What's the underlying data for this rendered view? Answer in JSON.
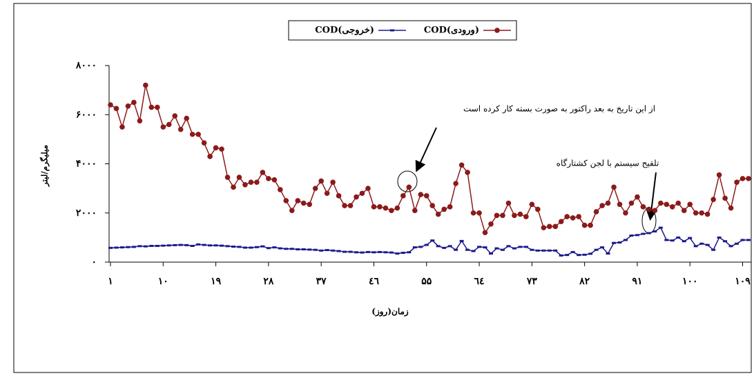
{
  "chart_data": {
    "type": "line",
    "x_label": "زمان(روز)",
    "y_label": "میلیگرم/لیتر",
    "legend": "top",
    "x": [
      1,
      2,
      3,
      4,
      5,
      6,
      7,
      8,
      9,
      10,
      11,
      12,
      13,
      14,
      15,
      16,
      17,
      18,
      19,
      20,
      21,
      22,
      23,
      24,
      25,
      26,
      27,
      28,
      29,
      30,
      31,
      32,
      33,
      34,
      35,
      36,
      37,
      38,
      39,
      40,
      41,
      42,
      43,
      44,
      45,
      46,
      47,
      48,
      49,
      50,
      51,
      52,
      53,
      54,
      55,
      56,
      57,
      58,
      59,
      60,
      61,
      62,
      63,
      64,
      65,
      66,
      67,
      68,
      69,
      70,
      71,
      72,
      73,
      74,
      75,
      76,
      77,
      78,
      79,
      80,
      81,
      82,
      83,
      84,
      85,
      86,
      87,
      88,
      89,
      90,
      91,
      92,
      93,
      94,
      95,
      96,
      97,
      98,
      99,
      100,
      101,
      102,
      103,
      104,
      105,
      106,
      107,
      108,
      109,
      110
    ],
    "xlim": [
      1,
      110
    ],
    "xticks": [
      {
        "value": 1,
        "label": "۱"
      },
      {
        "value": 10,
        "label": "۱۰"
      },
      {
        "value": 19,
        "label": "۱۹"
      },
      {
        "value": 28,
        "label": "۲۸"
      },
      {
        "value": 37,
        "label": "۳۷"
      },
      {
        "value": 46,
        "label": "٤٦"
      },
      {
        "value": 55,
        "label": "۵۵"
      },
      {
        "value": 64,
        "label": "٦٤"
      },
      {
        "value": 73,
        "label": "۷۳"
      },
      {
        "value": 82,
        "label": "۸۲"
      },
      {
        "value": 91,
        "label": "۹۱"
      },
      {
        "value": 100,
        "label": "۱۰۰"
      },
      {
        "value": 109,
        "label": "۱۰۹"
      }
    ],
    "ylim": [
      0,
      8000
    ],
    "yticks": [
      {
        "value": 0,
        "label": "۰"
      },
      {
        "value": 2000,
        "label": "۲۰۰۰"
      },
      {
        "value": 4000,
        "label": "۴۰۰۰"
      },
      {
        "value": 6000,
        "label": "۶۰۰۰"
      },
      {
        "value": 8000,
        "label": "۸۰۰۰"
      }
    ],
    "series": [
      {
        "name": "COD(ورودی)",
        "color": "#8b1a1a",
        "marker": "circle",
        "values": [
          6400,
          6250,
          5500,
          6350,
          6500,
          5750,
          7200,
          6300,
          6300,
          5500,
          5600,
          5950,
          5400,
          5850,
          5200,
          5200,
          4850,
          4300,
          4650,
          4600,
          3450,
          3050,
          3450,
          3150,
          3250,
          3250,
          3650,
          3400,
          3350,
          2950,
          2500,
          2100,
          2500,
          2400,
          2350,
          3000,
          3300,
          2800,
          3250,
          2700,
          2300,
          2300,
          2650,
          2800,
          3000,
          2250,
          2250,
          2200,
          2100,
          2200,
          2700,
          3050,
          2100,
          2750,
          2700,
          2300,
          1950,
          2150,
          2250,
          3200,
          3950,
          3650,
          2000,
          2000,
          1200,
          1550,
          1900,
          1900,
          2400,
          1900,
          1950,
          1850,
          2350,
          2150,
          1400,
          1450,
          1450,
          1650,
          1850,
          1800,
          1850,
          1500,
          1500,
          2050,
          2300,
          2400,
          3050,
          2350,
          2000,
          2400,
          2650,
          2250,
          2150,
          2100,
          2400,
          2350,
          2250,
          2400,
          2100,
          2350,
          2000,
          2000,
          1950,
          2550,
          3550,
          2600,
          2200,
          3250,
          3400,
          3400
        ]
      },
      {
        "name": "COD(خروجی)",
        "color": "#1a1a8b",
        "marker": "dash",
        "values": [
          580,
          590,
          600,
          610,
          620,
          650,
          640,
          660,
          660,
          670,
          680,
          690,
          700,
          690,
          660,
          720,
          700,
          680,
          680,
          670,
          650,
          630,
          620,
          590,
          590,
          610,
          640,
          570,
          600,
          560,
          540,
          540,
          520,
          520,
          510,
          500,
          470,
          490,
          470,
          450,
          420,
          420,
          400,
          390,
          410,
          400,
          410,
          400,
          390,
          350,
          380,
          400,
          600,
          620,
          700,
          880,
          650,
          580,
          650,
          500,
          860,
          500,
          450,
          620,
          600,
          350,
          560,
          500,
          650,
          560,
          620,
          620,
          500,
          470,
          470,
          470,
          470,
          270,
          290,
          410,
          290,
          300,
          340,
          500,
          600,
          350,
          780,
          800,
          900,
          1080,
          1100,
          1150,
          1180,
          1250,
          1400,
          900,
          880,
          1000,
          850,
          980,
          650,
          750,
          700,
          500,
          1000,
          850,
          650,
          750,
          900,
          900
        ]
      }
    ],
    "annotations": [
      "از این تاریخ به بعد راکتور به صورت بسته کار کرده است",
      "تلقیح سیستم با لجن کشتارگاه"
    ]
  }
}
